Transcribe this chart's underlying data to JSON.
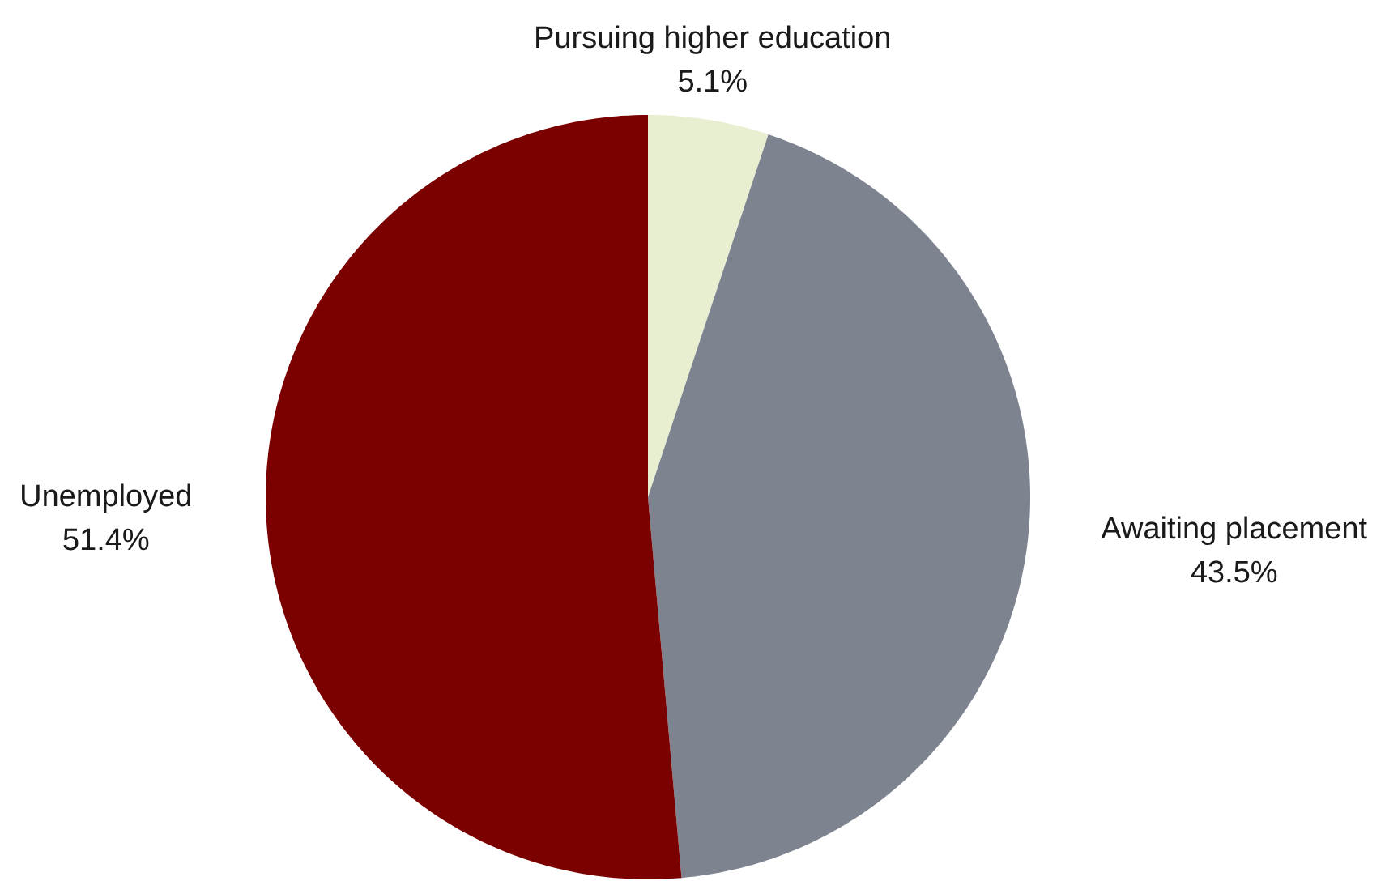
{
  "chart_data": {
    "type": "pie",
    "categories": [
      "Pursuing higher education",
      "Awaiting placement",
      "Unemployed"
    ],
    "values": [
      5.1,
      43.5,
      51.4
    ],
    "colors": [
      "#e8efd0",
      "#7e8390",
      "#7b0000"
    ],
    "value_labels": [
      "5.1%",
      "43.5%",
      "51.4%"
    ]
  }
}
